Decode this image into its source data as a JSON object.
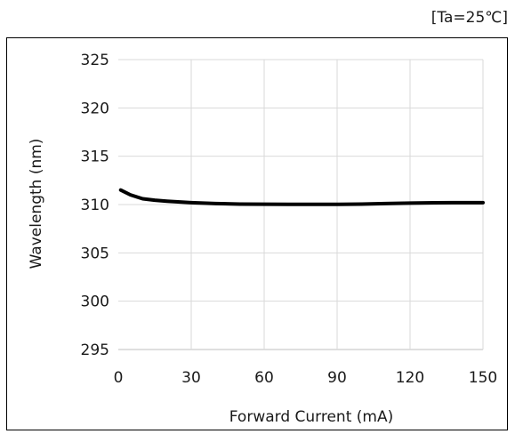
{
  "condition_label": "[Ta=25℃]",
  "chart_data": {
    "type": "line",
    "xlabel": "Forward Current (mA)",
    "ylabel": "Wavelength (nm)",
    "xlim": [
      0,
      150
    ],
    "ylim": [
      295,
      325
    ],
    "xticks": [
      0,
      30,
      60,
      90,
      120,
      150
    ],
    "yticks": [
      295,
      300,
      305,
      310,
      315,
      320,
      325
    ],
    "grid": true,
    "legend": "none",
    "series": [
      {
        "color": "#000000",
        "x": [
          1,
          5,
          10,
          15,
          20,
          30,
          40,
          50,
          60,
          70,
          80,
          90,
          100,
          110,
          120,
          130,
          140,
          150
        ],
        "y": [
          311.5,
          311.0,
          310.6,
          310.45,
          310.35,
          310.2,
          310.1,
          310.05,
          310.03,
          310.02,
          310.02,
          310.02,
          310.05,
          310.1,
          310.15,
          310.18,
          310.2,
          310.2
        ]
      }
    ]
  }
}
